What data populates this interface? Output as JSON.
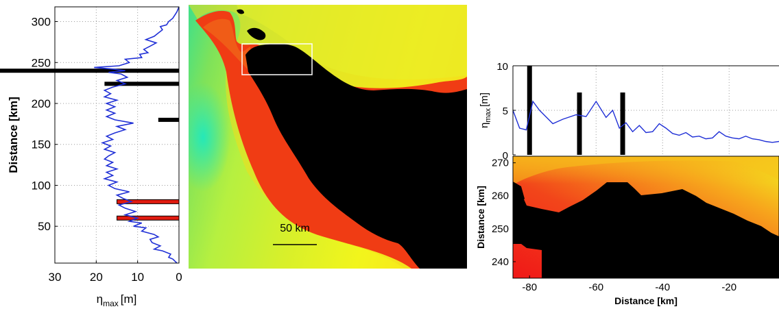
{
  "colors": {
    "series": "#1f2fd6",
    "marker_black": "#000000",
    "marker_red": "#e01b10",
    "grid": "#9a9a9a"
  },
  "chart_data": [
    {
      "type": "line",
      "panel": "left",
      "xlabel_main": "η",
      "xlabel_sub": "max",
      "xlabel_unit": "[m]",
      "ylabel": "Distance [km]",
      "xlim": [
        30,
        0
      ],
      "ylim": [
        5,
        318
      ],
      "x_reversed": true,
      "xticks": [
        30,
        20,
        10,
        0
      ],
      "yticks": [
        50,
        100,
        150,
        200,
        250,
        300
      ],
      "grid": true,
      "series": [
        {
          "points": [
            [
              0.5,
              5
            ],
            [
              1.5,
              10
            ],
            [
              2.5,
              12
            ],
            [
              2,
              16
            ],
            [
              4,
              20
            ],
            [
              6,
              22
            ],
            [
              4.5,
              26
            ],
            [
              6.5,
              30
            ],
            [
              7,
              34
            ],
            [
              5,
              37
            ],
            [
              6,
              40
            ],
            [
              9,
              44
            ],
            [
              8,
              48
            ],
            [
              11,
              50
            ],
            [
              9,
              54
            ],
            [
              12,
              56
            ],
            [
              10,
              60
            ],
            [
              13,
              64
            ],
            [
              10.5,
              68
            ],
            [
              13,
              72
            ],
            [
              14.5,
              76
            ],
            [
              11.5,
              80
            ],
            [
              13.5,
              84
            ],
            [
              15,
              88
            ],
            [
              12,
              92
            ],
            [
              15.5,
              96
            ],
            [
              17,
              100
            ],
            [
              15,
              104
            ],
            [
              18,
              108
            ],
            [
              16,
              112
            ],
            [
              17.5,
              116
            ],
            [
              15,
              120
            ],
            [
              17.5,
              124
            ],
            [
              16,
              128
            ],
            [
              18,
              132
            ],
            [
              17,
              136
            ],
            [
              15.5,
              140
            ],
            [
              18,
              144
            ],
            [
              16.5,
              148
            ],
            [
              18.5,
              152
            ],
            [
              16,
              156
            ],
            [
              17.5,
              160
            ],
            [
              15.5,
              164
            ],
            [
              13,
              168
            ],
            [
              15,
              172
            ],
            [
              11,
              176
            ],
            [
              15.5,
              180
            ],
            [
              17.5,
              184
            ],
            [
              15.5,
              188
            ],
            [
              17.5,
              192
            ],
            [
              15.5,
              196
            ],
            [
              17.5,
              200
            ],
            [
              15,
              204
            ],
            [
              18,
              208
            ],
            [
              16.5,
              212
            ],
            [
              18,
              216
            ],
            [
              16,
              220
            ],
            [
              13,
              224
            ],
            [
              15,
              228
            ],
            [
              12.5,
              232
            ],
            [
              14,
              236
            ],
            [
              17,
              238
            ],
            [
              13,
              240
            ],
            [
              16,
              242
            ],
            [
              20.5,
              244
            ],
            [
              14.5,
              246
            ],
            [
              12,
              250
            ],
            [
              13,
              254
            ],
            [
              9,
              256
            ],
            [
              9.5,
              260
            ],
            [
              7.5,
              262
            ],
            [
              8.5,
              266
            ],
            [
              7,
              270
            ],
            [
              5.5,
              274
            ],
            [
              8,
              278
            ],
            [
              6,
              282
            ],
            [
              5,
              286
            ],
            [
              4,
              290
            ],
            [
              4.5,
              294
            ],
            [
              3,
              296
            ],
            [
              2.5,
              300
            ],
            [
              1.5,
              304
            ],
            [
              1,
              308
            ],
            [
              0.5,
              312
            ],
            [
              0,
              318
            ]
          ]
        }
      ],
      "markers": [
        {
          "y": 240,
          "x_from": 30,
          "x_to": 0,
          "color": "black"
        },
        {
          "y": 224,
          "x_from": 18,
          "x_to": 0,
          "color": "black"
        },
        {
          "y": 180,
          "x_from": 5,
          "x_to": 0,
          "color": "black"
        },
        {
          "y": 80,
          "x_from": 15,
          "x_to": 0,
          "color": "red"
        },
        {
          "y": 60,
          "x_from": 15,
          "x_to": 0,
          "color": "red"
        }
      ]
    },
    {
      "type": "heatmap",
      "panel": "middle",
      "scale_label": "50 km"
    },
    {
      "type": "line",
      "panel": "right-top",
      "ylabel_main": "η",
      "ylabel_sub": "max",
      "ylabel_unit": "[m]",
      "xlim": [
        -85,
        -5
      ],
      "ylim": [
        0,
        10
      ],
      "yticks": [
        0,
        5,
        10
      ],
      "xgrid": [
        -80,
        -60,
        -40,
        -20
      ],
      "grid": true,
      "series": [
        {
          "points": [
            [
              -85,
              5
            ],
            [
              -83,
              3
            ],
            [
              -81,
              2.8
            ],
            [
              -79,
              6
            ],
            [
              -77,
              5
            ],
            [
              -73,
              3.5
            ],
            [
              -70,
              4
            ],
            [
              -66,
              4.5
            ],
            [
              -63,
              4.3
            ],
            [
              -60,
              6
            ],
            [
              -57,
              4.2
            ],
            [
              -55,
              5
            ],
            [
              -53,
              3
            ],
            [
              -51,
              3.6
            ],
            [
              -49,
              2.6
            ],
            [
              -47,
              3.3
            ],
            [
              -45,
              2.5
            ],
            [
              -43,
              2.6
            ],
            [
              -41,
              3.5
            ],
            [
              -39,
              3
            ],
            [
              -37,
              2.4
            ],
            [
              -35,
              2.2
            ],
            [
              -33,
              2.5
            ],
            [
              -31,
              2
            ],
            [
              -29,
              2.1
            ],
            [
              -27,
              1.8
            ],
            [
              -25,
              1.9
            ],
            [
              -23,
              2.6
            ],
            [
              -21,
              2.1
            ],
            [
              -19,
              1.9
            ],
            [
              -17,
              1.8
            ],
            [
              -15,
              2.1
            ],
            [
              -13,
              1.8
            ],
            [
              -11,
              1.7
            ],
            [
              -9,
              1.5
            ],
            [
              -7,
              1.4
            ],
            [
              -5,
              1.5
            ]
          ]
        }
      ],
      "bars": [
        {
          "x": -80,
          "height": 10
        },
        {
          "x": -65,
          "height": 7
        },
        {
          "x": -52,
          "height": 7
        }
      ]
    },
    {
      "type": "heatmap",
      "panel": "right-bottom",
      "xlabel": "Distance [km]",
      "ylabel": "Distance [km]",
      "xlim": [
        -85,
        -5
      ],
      "ylim": [
        235,
        272
      ],
      "xticks": [
        -80,
        -60,
        -40,
        -20
      ],
      "yticks": [
        240,
        250,
        260,
        270
      ]
    }
  ]
}
